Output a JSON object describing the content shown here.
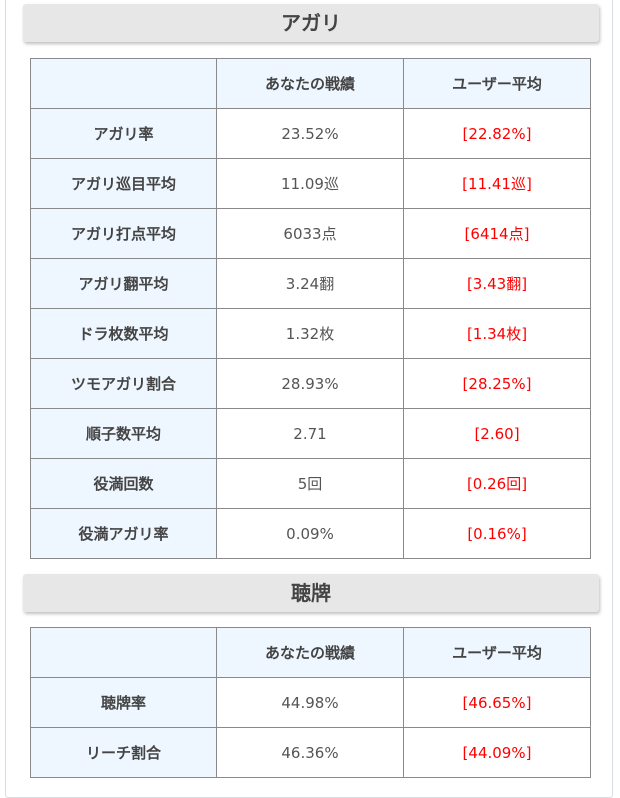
{
  "agari": {
    "title": "アガリ",
    "headers": [
      "",
      "あなたの戦績",
      "ユーザー平均"
    ],
    "rows": [
      {
        "label": "アガリ率",
        "you": "23.52%",
        "avg": "[22.82%]"
      },
      {
        "label": "アガリ巡目平均",
        "you": "11.09巡",
        "avg": "[11.41巡]"
      },
      {
        "label": "アガリ打点平均",
        "you": "6033点",
        "avg": "[6414点]"
      },
      {
        "label": "アガリ翻平均",
        "you": "3.24翻",
        "avg": "[3.43翻]"
      },
      {
        "label": "ドラ枚数平均",
        "you": "1.32枚",
        "avg": "[1.34枚]"
      },
      {
        "label": "ツモアガリ割合",
        "you": "28.93%",
        "avg": "[28.25%]"
      },
      {
        "label": "順子数平均",
        "you": "2.71",
        "avg": "[2.60]"
      },
      {
        "label": "役満回数",
        "you": "5回",
        "avg": "[0.26回]"
      },
      {
        "label": "役満アガリ率",
        "you": "0.09%",
        "avg": "[0.16%]"
      }
    ]
  },
  "tenpai": {
    "title": "聴牌",
    "headers": [
      "",
      "あなたの戦績",
      "ユーザー平均"
    ],
    "rows": [
      {
        "label": "聴牌率",
        "you": "44.98%",
        "avg": "[46.65%]"
      },
      {
        "label": "リーチ割合",
        "you": "46.36%",
        "avg": "[44.09%]"
      }
    ]
  },
  "colors": {
    "average": "#ff0000",
    "label_bg": "#eef7ff",
    "header_bg": "#e7e7e7"
  }
}
